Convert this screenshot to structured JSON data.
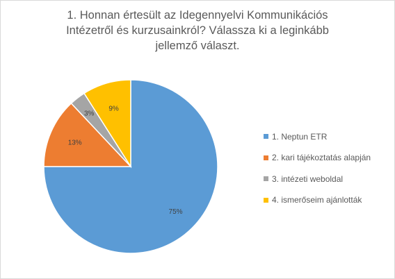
{
  "chart_data": {
    "type": "pie",
    "title": "1. Honnan értesült az Idegennyelvi Kommunikációs Intézetről és kurzusainkról? Válassza ki a leginkább jellemző választ.",
    "title_lines": [
      "1. Honnan értesült az Idegennyelvi Kommunikációs",
      "Intézetről és kurzusainkról? Válassza ki a leginkább",
      "jellemző választ."
    ],
    "categories": [
      "1. Neptun ETR",
      "2. kari tájékoztatás alapján",
      "3. intézeti weboldal",
      "4. ismerőseim ajánlották"
    ],
    "values": [
      75,
      13,
      3,
      9
    ],
    "data_labels": [
      "75%",
      "13%",
      "3%",
      "9%"
    ],
    "colors": [
      "#5B9BD5",
      "#ED7D31",
      "#A5A5A5",
      "#FFC000"
    ],
    "legend_position": "right"
  }
}
